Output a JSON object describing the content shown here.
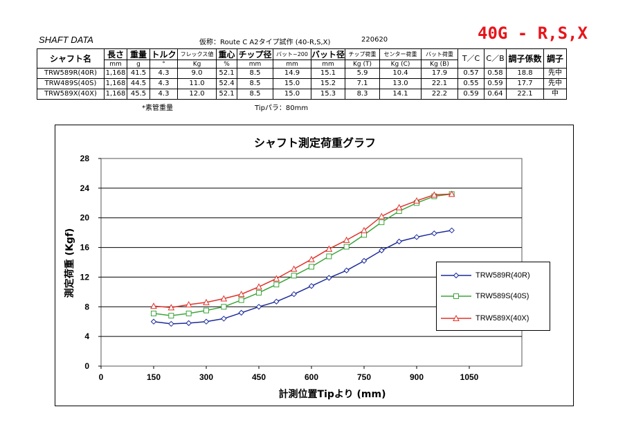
{
  "header": {
    "title": "SHAFT DATA",
    "subtitle": "仮称：Route C A2タイプ試作 (40-R,S,X)",
    "date": "220620",
    "flex_label": "40G - R,S,X"
  },
  "spec_table": {
    "headers": [
      "シャフト名",
      "長さ",
      "重量",
      "トルク",
      "フレックス値",
      "重心",
      "チップ径",
      "バット~200",
      "バット径",
      "チップ荷重",
      "センター荷重",
      "バット荷重",
      "T／C",
      "C／B",
      "調子係数",
      "調子"
    ],
    "units": [
      "mm",
      "g",
      "°",
      "Kg",
      "%",
      "mm",
      "mm",
      "mm",
      "Kg (T)",
      "Kg (C)",
      "Kg (B)"
    ],
    "rows": [
      [
        "TRW589R(40R)",
        "1,168",
        "41.5",
        "4.3",
        "9.0",
        "52.1",
        "8.5",
        "14.9",
        "15.1",
        "5.9",
        "10.4",
        "17.9",
        "0.57",
        "0.58",
        "18.8",
        "先中"
      ],
      [
        "TRW489S(40S)",
        "1,168",
        "44.5",
        "4.3",
        "11.0",
        "52.4",
        "8.5",
        "15.0",
        "15.2",
        "7.1",
        "13.0",
        "22.1",
        "0.55",
        "0.59",
        "17.7",
        "先中"
      ],
      [
        "TRW589X(40X)",
        "1,168",
        "45.5",
        "4.3",
        "12.0",
        "52.1",
        "8.5",
        "15.0",
        "15.3",
        "8.3",
        "14.1",
        "22.2",
        "0.59",
        "0.64",
        "22.1",
        "中"
      ]
    ],
    "note_weight": "*素管重量",
    "note_tip": "Tipパラ：80mm"
  },
  "chart_data": {
    "type": "line",
    "title": "シャフト測定荷重グラフ",
    "xlabel": "計測位置Tipより (mm)",
    "ylabel": "測定荷重 (Kgf)",
    "xlim": [
      0,
      1200
    ],
    "ylim": [
      0,
      28
    ],
    "x_ticks": [
      0,
      150,
      300,
      450,
      600,
      750,
      900,
      1050
    ],
    "y_ticks": [
      0,
      4,
      8,
      12,
      16,
      20,
      24,
      28
    ],
    "grid": "horizontal",
    "legend_position": "right",
    "x": [
      150,
      200,
      250,
      300,
      350,
      400,
      450,
      500,
      550,
      600,
      650,
      700,
      750,
      800,
      850,
      900,
      950,
      1000
    ],
    "series": [
      {
        "name": "TRW589R(40R)",
        "color": "#1a2a9c",
        "marker": "diamond",
        "values": [
          6.0,
          5.7,
          5.8,
          6.0,
          6.4,
          7.2,
          8.0,
          8.7,
          9.7,
          10.8,
          11.9,
          12.9,
          14.2,
          15.6,
          16.8,
          17.4,
          17.9,
          18.3
        ]
      },
      {
        "name": "TRW589S(40S)",
        "color": "#3aa53a",
        "marker": "square",
        "values": [
          7.1,
          6.8,
          7.1,
          7.5,
          8.0,
          8.9,
          9.9,
          11.0,
          12.2,
          13.4,
          14.8,
          16.1,
          17.7,
          19.4,
          20.9,
          22.0,
          22.9,
          23.2
        ]
      },
      {
        "name": "TRW589X(40X)",
        "color": "#e0322a",
        "marker": "triangle",
        "values": [
          8.1,
          7.9,
          8.3,
          8.6,
          9.1,
          9.7,
          10.7,
          11.8,
          13.1,
          14.4,
          15.8,
          17.0,
          18.3,
          20.2,
          21.4,
          22.3,
          23.1,
          23.2
        ]
      }
    ]
  }
}
